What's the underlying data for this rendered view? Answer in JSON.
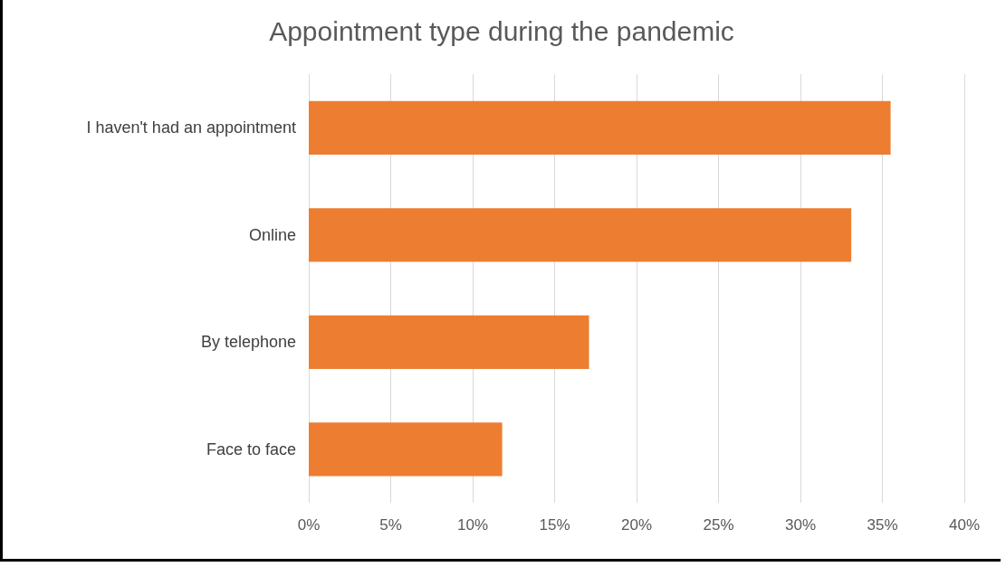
{
  "chart_data": {
    "type": "bar",
    "orientation": "horizontal",
    "title": "Appointment type during the pandemic",
    "categories": [
      "I haven't had an appointment",
      "Online",
      "By telephone",
      "Face to face"
    ],
    "values": [
      35.5,
      33.1,
      17.1,
      11.8
    ],
    "color": "#ed7d31",
    "xlim": [
      0,
      40
    ],
    "xticks": [
      {
        "value": 0,
        "label": "0%"
      },
      {
        "value": 5,
        "label": "5%"
      },
      {
        "value": 10,
        "label": "10%"
      },
      {
        "value": 15,
        "label": "15%"
      },
      {
        "value": 20,
        "label": "20%"
      },
      {
        "value": 25,
        "label": "25%"
      },
      {
        "value": 30,
        "label": "30%"
      },
      {
        "value": 35,
        "label": "35%"
      },
      {
        "value": 40,
        "label": "40%"
      }
    ],
    "grid": "x"
  }
}
